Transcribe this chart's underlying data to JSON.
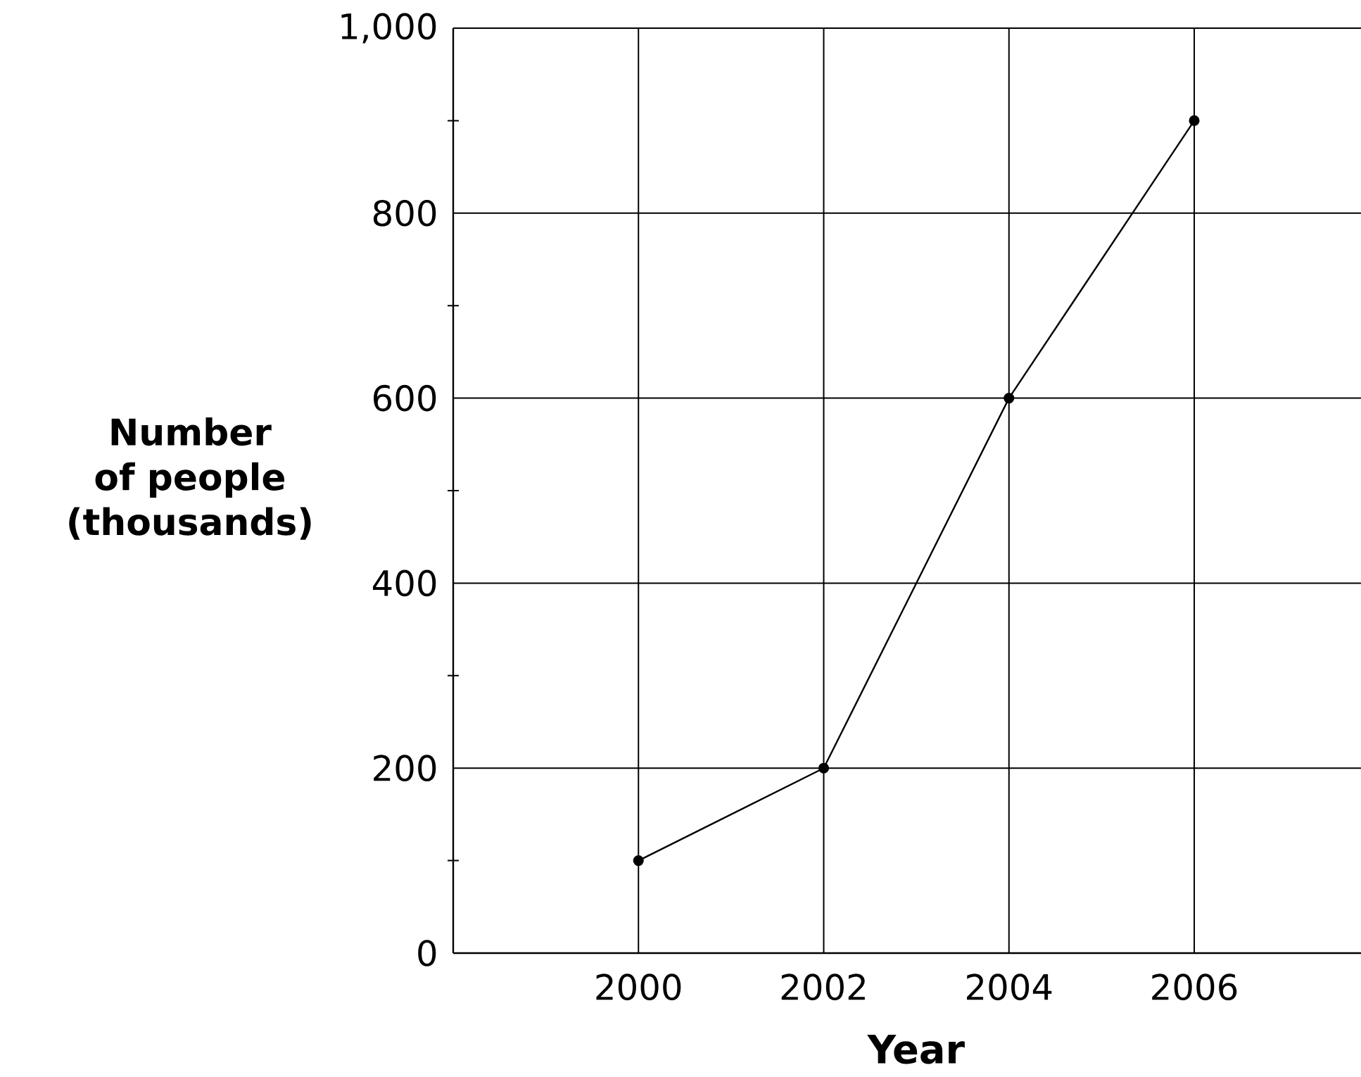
{
  "chart_data": {
    "type": "line",
    "xlabel": "Year",
    "ylabel": "Number of people (thousands)",
    "x": [
      2000,
      2002,
      2004,
      2006
    ],
    "values": [
      100,
      200,
      600,
      900
    ],
    "color": "#000000",
    "xlim": [
      1998,
      2007.8
    ],
    "ylim": [
      0,
      1000
    ],
    "xticks": [
      2000,
      2002,
      2004,
      2006
    ],
    "yticks": [
      0,
      {
        "value": 100,
        "label": null
      },
      200,
      {
        "value": 300,
        "label": null
      },
      400,
      {
        "value": 500,
        "label": null
      },
      600,
      {
        "value": 700,
        "label": null
      },
      800,
      {
        "value": 900,
        "label": null
      },
      {
        "value": 1000,
        "label": "1,000"
      }
    ],
    "grid": true,
    "marker": "circle",
    "line_style": "solid"
  }
}
